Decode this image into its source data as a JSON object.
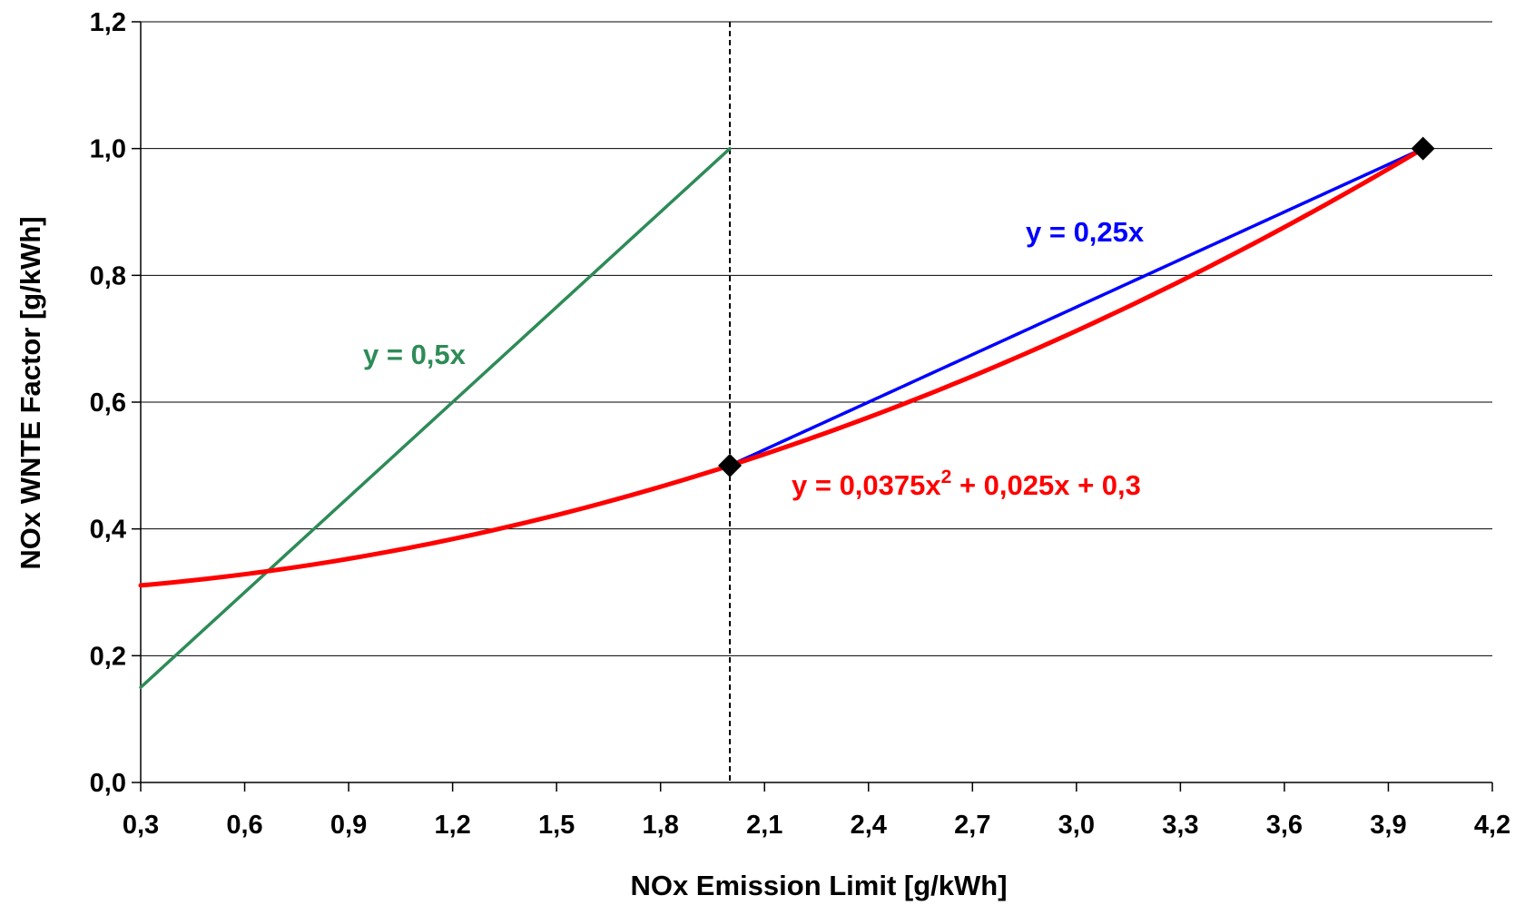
{
  "chart_data": {
    "type": "line",
    "xlabel": "NOx Emission Limit [g/kWh]",
    "ylabel": "NOx WNTE Factor [g/kWh]",
    "xlim": [
      0.3,
      4.2
    ],
    "ylim": [
      0.0,
      1.2
    ],
    "x_ticks": [
      "0,3",
      "0,6",
      "0,9",
      "1,2",
      "1,5",
      "1,8",
      "2,1",
      "2,4",
      "2,7",
      "3,0",
      "3,3",
      "3,6",
      "3,9",
      "4,2"
    ],
    "y_ticks": [
      "0,0",
      "0,2",
      "0,4",
      "0,6",
      "0,8",
      "1,0",
      "1,2"
    ],
    "grid": "horizontal",
    "legend": "none",
    "reference_line": {
      "x": 2.0,
      "style": "dashed"
    },
    "series": [
      {
        "label": "y = 0,5x",
        "color": "#2e8b57",
        "equation": {
          "a": 0,
          "b": 0.5,
          "c": 0
        },
        "domain": [
          0.3,
          2.0
        ]
      },
      {
        "label": "y = 0,25x",
        "color": "#0000ff",
        "equation": {
          "a": 0,
          "b": 0.25,
          "c": 0
        },
        "domain": [
          2.0,
          4.0
        ]
      },
      {
        "label_base": "y = 0,0375x",
        "label_sup": "2",
        "label_rest": " + 0,025x + 0,3",
        "color": "#ff0000",
        "equation": {
          "a": 0.0375,
          "b": 0.025,
          "c": 0.3
        },
        "domain": [
          0.3,
          4.0
        ]
      }
    ],
    "markers": [
      {
        "x": 2.0,
        "y": 0.5
      },
      {
        "x": 4.0,
        "y": 1.0
      }
    ]
  }
}
